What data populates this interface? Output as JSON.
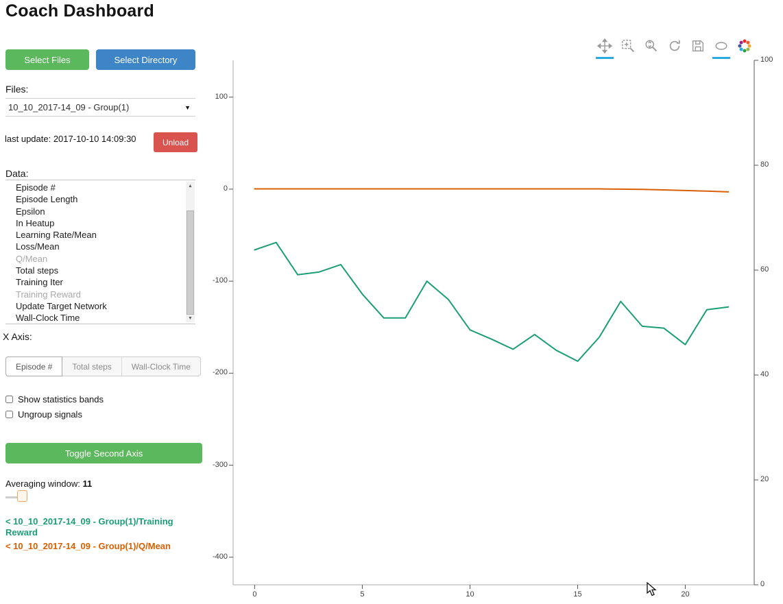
{
  "header": {
    "title": "Coach Dashboard"
  },
  "sidebar": {
    "select_files": "Select Files",
    "select_directory": "Select Directory",
    "files_label": "Files:",
    "files_value": "10_10_2017-14_09 - Group(1)",
    "last_update": "last update: 2017-10-10 14:09:30",
    "unload": "Unload",
    "data_label": "Data:",
    "data_items": [
      {
        "label": "Episode #",
        "dimmed": false
      },
      {
        "label": "Episode Length",
        "dimmed": false
      },
      {
        "label": "Epsilon",
        "dimmed": false
      },
      {
        "label": "In Heatup",
        "dimmed": false
      },
      {
        "label": "Learning Rate/Mean",
        "dimmed": false
      },
      {
        "label": "Loss/Mean",
        "dimmed": false
      },
      {
        "label": "Q/Mean",
        "dimmed": true
      },
      {
        "label": "Total steps",
        "dimmed": false
      },
      {
        "label": "Training Iter",
        "dimmed": false
      },
      {
        "label": "Training Reward",
        "dimmed": true
      },
      {
        "label": "Update Target Network",
        "dimmed": false
      },
      {
        "label": "Wall-Clock Time",
        "dimmed": false
      }
    ],
    "x_axis_label": "X Axis:",
    "x_axis_options": [
      {
        "label": "Episode #",
        "active": true
      },
      {
        "label": "Total steps",
        "active": false
      },
      {
        "label": "Wall-Clock Time",
        "active": false
      }
    ],
    "checkbox_stats": {
      "label": "Show statistics bands",
      "checked": false
    },
    "checkbox_ungroup": {
      "label": "Ungroup signals",
      "checked": false
    },
    "toggle_second_axis": "Toggle Second Axis",
    "averaging_label": "Averaging window:",
    "averaging_value": "11",
    "legend": [
      {
        "label": "< 10_10_2017-14_09 - Group(1)/Training Reward",
        "color": "#1b9e77"
      },
      {
        "label": "< 10_10_2017-14_09 - Group(1)/Q/Mean",
        "color": "#d95f02"
      }
    ]
  },
  "toolbar": {
    "active_color": "#26aae1",
    "tools": [
      {
        "name": "pan",
        "active": true
      },
      {
        "name": "box-zoom",
        "active": false
      },
      {
        "name": "wheel-zoom",
        "active": false
      },
      {
        "name": "reset",
        "active": false
      },
      {
        "name": "save",
        "active": false
      },
      {
        "name": "hover",
        "active": true
      },
      {
        "name": "bokeh-logo",
        "active": false
      }
    ]
  },
  "colors": {
    "green": "#5cb85c",
    "blue": "#3d85c6",
    "red": "#d9534f"
  },
  "chart_data": {
    "type": "line",
    "title": "",
    "xlabel": "",
    "ylabel": "",
    "grid": false,
    "legend_position": "sidebar",
    "x": [
      0,
      1,
      2,
      3,
      4,
      5,
      6,
      7,
      8,
      9,
      10,
      11,
      12,
      13,
      14,
      15,
      16,
      17,
      18,
      19,
      20,
      21,
      22
    ],
    "series": [
      {
        "name": "10_10_2017-14_09 - Group(1)/Training Reward",
        "color": "#1b9e77",
        "axis": "left",
        "values": [
          -66,
          -58,
          -93,
          -90,
          -82,
          -114,
          -140,
          -140,
          -100,
          -120,
          -153,
          -163,
          -174,
          -158,
          -175,
          -187,
          -161,
          -122,
          -149,
          -151,
          -169,
          -131,
          -128
        ]
      },
      {
        "name": "10_10_2017-14_09 - Group(1)/Q/Mean",
        "color": "#d95f02",
        "axis": "left",
        "values": [
          0.3,
          0.3,
          0.3,
          0.3,
          0.3,
          0.3,
          0.3,
          0.3,
          0.3,
          0.3,
          0.3,
          0.3,
          0.3,
          0.3,
          0.3,
          0.3,
          0.3,
          0,
          -0.3,
          -0.8,
          -1.5,
          -2.2,
          -3
        ]
      }
    ],
    "x_axis": {
      "ticks": [
        0,
        5,
        10,
        15,
        20
      ],
      "range": [
        -1,
        23.2
      ]
    },
    "left_axis": {
      "ticks": [
        100,
        0,
        -100,
        -200,
        -300,
        -400
      ],
      "range": [
        -430,
        140
      ]
    },
    "right_axis": {
      "ticks": [
        0,
        20,
        40,
        60,
        80,
        100
      ],
      "range": [
        0,
        100
      ]
    }
  }
}
